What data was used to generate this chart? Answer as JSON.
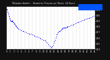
{
  "title": "Milwaukee Weather - Barometric Pressure per Minute (24 Hours)",
  "bg_color": "#111111",
  "plot_bg_color": "#ffffff",
  "dot_color": "#0000ff",
  "legend_color": "#0055ff",
  "grid_color": "#999999",
  "y_min": 29.4,
  "y_max": 30.15,
  "x_min": 0,
  "x_max": 1440,
  "y_tick_values": [
    29.4,
    29.5,
    29.6,
    29.7,
    29.8,
    29.9,
    30.0,
    30.1
  ],
  "y_tick_labels": [
    "29.4",
    "29.5",
    "29.6",
    "29.7",
    "29.8",
    "29.9",
    "30.0",
    "30.1"
  ],
  "x_tick_positions": [
    0,
    60,
    120,
    180,
    240,
    300,
    360,
    420,
    480,
    540,
    600,
    660,
    720,
    780,
    840,
    900,
    960,
    1020,
    1080,
    1140,
    1200,
    1260,
    1320,
    1380,
    1440
  ],
  "x_tick_labels": [
    "0",
    "1",
    "2",
    "3",
    "4",
    "5",
    "6",
    "7",
    "8",
    "9",
    "10",
    "11",
    "12",
    "13",
    "14",
    "15",
    "16",
    "17",
    "18",
    "19",
    "20",
    "21",
    "22",
    "23",
    "24"
  ],
  "pressure_data": [
    [
      0,
      30.12
    ],
    [
      6,
      30.1
    ],
    [
      12,
      30.08
    ],
    [
      18,
      30.06
    ],
    [
      24,
      30.04
    ],
    [
      30,
      30.02
    ],
    [
      36,
      30.0
    ],
    [
      42,
      29.98
    ],
    [
      48,
      29.96
    ],
    [
      54,
      29.94
    ],
    [
      60,
      29.92
    ],
    [
      66,
      29.91
    ],
    [
      72,
      29.9
    ],
    [
      78,
      29.9
    ],
    [
      84,
      29.91
    ],
    [
      90,
      29.91
    ],
    [
      96,
      29.9
    ],
    [
      102,
      29.89
    ],
    [
      108,
      29.88
    ],
    [
      114,
      29.87
    ],
    [
      120,
      29.87
    ],
    [
      126,
      29.86
    ],
    [
      132,
      29.85
    ],
    [
      138,
      29.84
    ],
    [
      144,
      29.83
    ],
    [
      150,
      29.82
    ],
    [
      156,
      29.81
    ],
    [
      162,
      29.8
    ],
    [
      168,
      29.79
    ],
    [
      174,
      29.78
    ],
    [
      180,
      29.77
    ],
    [
      200,
      29.76
    ],
    [
      220,
      29.75
    ],
    [
      240,
      29.74
    ],
    [
      260,
      29.73
    ],
    [
      280,
      29.72
    ],
    [
      300,
      29.71
    ],
    [
      320,
      29.7
    ],
    [
      340,
      29.69
    ],
    [
      360,
      29.68
    ],
    [
      380,
      29.67
    ],
    [
      400,
      29.67
    ],
    [
      420,
      29.66
    ],
    [
      440,
      29.65
    ],
    [
      460,
      29.64
    ],
    [
      480,
      29.63
    ],
    [
      500,
      29.62
    ],
    [
      520,
      29.61
    ],
    [
      540,
      29.6
    ],
    [
      560,
      29.59
    ],
    [
      580,
      29.58
    ],
    [
      600,
      29.57
    ],
    [
      620,
      29.56
    ],
    [
      635,
      29.55
    ],
    [
      650,
      29.53
    ],
    [
      665,
      29.51
    ],
    [
      680,
      29.49
    ],
    [
      695,
      29.47
    ],
    [
      710,
      29.45
    ],
    [
      720,
      29.43
    ],
    [
      730,
      29.43
    ],
    [
      740,
      29.44
    ],
    [
      750,
      29.45
    ],
    [
      760,
      29.48
    ],
    [
      770,
      29.51
    ],
    [
      780,
      29.54
    ],
    [
      790,
      29.57
    ],
    [
      800,
      29.6
    ],
    [
      810,
      29.63
    ],
    [
      820,
      29.66
    ],
    [
      830,
      29.68
    ],
    [
      840,
      29.7
    ],
    [
      850,
      29.71
    ],
    [
      860,
      29.72
    ],
    [
      870,
      29.73
    ],
    [
      880,
      29.74
    ],
    [
      890,
      29.75
    ],
    [
      900,
      29.76
    ],
    [
      910,
      29.77
    ],
    [
      920,
      29.77
    ],
    [
      930,
      29.78
    ],
    [
      940,
      29.78
    ],
    [
      950,
      29.79
    ],
    [
      960,
      29.79
    ],
    [
      970,
      29.79
    ],
    [
      980,
      29.8
    ],
    [
      990,
      29.8
    ],
    [
      1000,
      29.81
    ],
    [
      1020,
      29.81
    ],
    [
      1040,
      29.82
    ],
    [
      1060,
      29.83
    ],
    [
      1080,
      29.84
    ],
    [
      1100,
      29.85
    ],
    [
      1120,
      29.86
    ],
    [
      1140,
      29.87
    ],
    [
      1160,
      29.88
    ],
    [
      1180,
      29.89
    ],
    [
      1200,
      29.9
    ],
    [
      1220,
      29.91
    ],
    [
      1240,
      29.92
    ],
    [
      1260,
      29.92
    ],
    [
      1280,
      29.93
    ],
    [
      1300,
      29.94
    ],
    [
      1320,
      29.95
    ],
    [
      1340,
      29.96
    ],
    [
      1360,
      29.96
    ],
    [
      1380,
      29.97
    ],
    [
      1400,
      29.98
    ],
    [
      1420,
      29.99
    ],
    [
      1440,
      30.0
    ]
  ]
}
